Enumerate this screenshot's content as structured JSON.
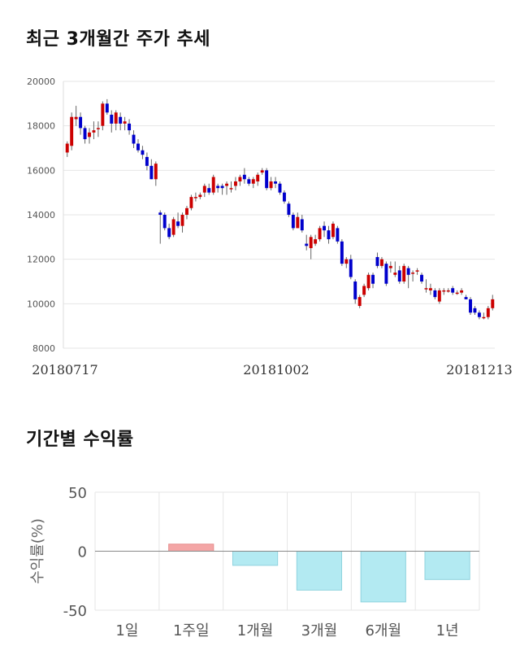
{
  "titles": {
    "price_trend": "최근 3개월간 주가 추세",
    "period_returns": "기간별 수익률"
  },
  "chart_data": [
    {
      "type": "candlestick",
      "y_ticks": [
        "20000",
        "18000",
        "16000",
        "14000",
        "12000",
        "10000",
        "8000"
      ],
      "ylim": [
        8000,
        20000
      ],
      "x_labels": [
        "20180717",
        "20181002",
        "20181213"
      ],
      "colors": {
        "up": "#cc0000",
        "down": "#0000cc",
        "grid": "#e6e6e6",
        "wick": "#666666"
      },
      "ohlc": [
        [
          16800,
          17300,
          16600,
          17200
        ],
        [
          17100,
          18600,
          16900,
          18400
        ],
        [
          18300,
          18900,
          18000,
          18400
        ],
        [
          18400,
          18600,
          17600,
          17900
        ],
        [
          17900,
          18000,
          17200,
          17400
        ],
        [
          17500,
          17900,
          17200,
          17700
        ],
        [
          17700,
          18200,
          17400,
          17800
        ],
        [
          17900,
          18200,
          17500,
          17900
        ],
        [
          18000,
          19100,
          17800,
          19000
        ],
        [
          19000,
          19200,
          18500,
          18600
        ],
        [
          18500,
          18700,
          17700,
          18100
        ],
        [
          18100,
          18700,
          17800,
          18600
        ],
        [
          18400,
          18600,
          17800,
          18100
        ],
        [
          18100,
          18400,
          17800,
          18200
        ],
        [
          18100,
          18300,
          17600,
          17800
        ],
        [
          17600,
          17800,
          17000,
          17200
        ],
        [
          17200,
          17400,
          16800,
          16900
        ],
        [
          16900,
          17100,
          16500,
          16700
        ],
        [
          16600,
          16800,
          16000,
          16200
        ],
        [
          16200,
          16500,
          15600,
          15600
        ],
        [
          15600,
          16400,
          15300,
          16300
        ],
        [
          14100,
          14200,
          12700,
          14000
        ],
        [
          14000,
          14100,
          13300,
          13400
        ],
        [
          13400,
          13600,
          12900,
          13000
        ],
        [
          13100,
          13900,
          13000,
          13800
        ],
        [
          13700,
          14100,
          13400,
          13500
        ],
        [
          13500,
          14100,
          13200,
          14000
        ],
        [
          14000,
          14400,
          13800,
          14300
        ],
        [
          14300,
          14900,
          14200,
          14800
        ],
        [
          14800,
          15000,
          14600,
          14800
        ],
        [
          14800,
          15000,
          14700,
          14900
        ],
        [
          15000,
          15400,
          14800,
          15300
        ],
        [
          15200,
          15400,
          14900,
          15000
        ],
        [
          15000,
          15800,
          14900,
          15700
        ],
        [
          15300,
          15400,
          15000,
          15200
        ],
        [
          15300,
          15400,
          14900,
          15200
        ],
        [
          15300,
          15500,
          14900,
          15400
        ],
        [
          15200,
          15500,
          15000,
          15200
        ],
        [
          15300,
          15700,
          15100,
          15500
        ],
        [
          15500,
          15800,
          15300,
          15700
        ],
        [
          15800,
          16100,
          15400,
          15600
        ],
        [
          15600,
          15700,
          15300,
          15400
        ],
        [
          15400,
          15700,
          15200,
          15600
        ],
        [
          15500,
          15900,
          15300,
          15800
        ],
        [
          15900,
          16100,
          15800,
          16000
        ],
        [
          16000,
          16100,
          15100,
          15200
        ],
        [
          15200,
          15700,
          15100,
          15500
        ],
        [
          15500,
          15700,
          15200,
          15400
        ],
        [
          15400,
          15500,
          14900,
          15000
        ],
        [
          15000,
          15100,
          14500,
          14600
        ],
        [
          14500,
          14600,
          13900,
          14000
        ],
        [
          14000,
          14100,
          13300,
          13400
        ],
        [
          13400,
          14100,
          13400,
          13900
        ],
        [
          13800,
          14000,
          13200,
          13300
        ],
        [
          12700,
          13100,
          12400,
          12600
        ],
        [
          12500,
          13100,
          12000,
          13000
        ],
        [
          12700,
          13100,
          12600,
          12900
        ],
        [
          12900,
          13500,
          12800,
          13400
        ],
        [
          13500,
          13700,
          13000,
          13300
        ],
        [
          13300,
          13500,
          12700,
          12900
        ],
        [
          13000,
          13700,
          12900,
          13600
        ],
        [
          13400,
          13500,
          12700,
          12800
        ],
        [
          12800,
          12900,
          11700,
          11800
        ],
        [
          11800,
          12100,
          11600,
          12000
        ],
        [
          12000,
          12200,
          11100,
          11200
        ],
        [
          11000,
          11100,
          10000,
          10200
        ],
        [
          9900,
          10400,
          9800,
          10300
        ],
        [
          10400,
          10900,
          10300,
          10800
        ],
        [
          10700,
          11400,
          10600,
          11300
        ],
        [
          11300,
          11400,
          10700,
          10900
        ],
        [
          12100,
          12300,
          11600,
          11700
        ],
        [
          11700,
          12100,
          11600,
          12000
        ],
        [
          11800,
          11900,
          10800,
          10900
        ],
        [
          11600,
          11900,
          11400,
          11700
        ],
        [
          11300,
          11900,
          11200,
          11400
        ],
        [
          11500,
          11700,
          10900,
          11000
        ],
        [
          11000,
          11800,
          10900,
          11700
        ],
        [
          11600,
          11700,
          10700,
          11300
        ],
        [
          11400,
          11500,
          11000,
          11400
        ],
        [
          11500,
          11600,
          11300,
          11500
        ],
        [
          11300,
          11400,
          10900,
          11000
        ],
        [
          10700,
          11100,
          10500,
          10700
        ],
        [
          10600,
          10900,
          10400,
          10700
        ],
        [
          10600,
          10700,
          10200,
          10300
        ],
        [
          10100,
          10700,
          10000,
          10600
        ],
        [
          10600,
          10700,
          10400,
          10600
        ],
        [
          10600,
          10700,
          10500,
          10600
        ],
        [
          10700,
          10800,
          10400,
          10500
        ],
        [
          10500,
          10600,
          10400,
          10500
        ],
        [
          10500,
          10700,
          10400,
          10600
        ],
        [
          10300,
          10400,
          10200,
          10200
        ],
        [
          10200,
          10300,
          9500,
          9600
        ],
        [
          9800,
          9900,
          9500,
          9600
        ],
        [
          9600,
          9700,
          9300,
          9400
        ],
        [
          9400,
          9600,
          9300,
          9400
        ],
        [
          9400,
          9900,
          9300,
          9800
        ],
        [
          9800,
          10400,
          9700,
          10200
        ]
      ]
    },
    {
      "type": "bar",
      "categories": [
        "1일",
        "1주일",
        "1개월",
        "3개월",
        "6개월",
        "1년"
      ],
      "values": [
        0,
        6,
        -12,
        -33,
        -43,
        -24
      ],
      "ylabel": "수익률(%)",
      "y_ticks": [
        "50",
        "0",
        "-50"
      ],
      "ylim": [
        -50,
        50
      ],
      "colors": {
        "positive": "#f4a6a6",
        "negative": "#b3eaf2",
        "grid": "#e6e6e6",
        "zero_line": "#888888"
      }
    }
  ]
}
